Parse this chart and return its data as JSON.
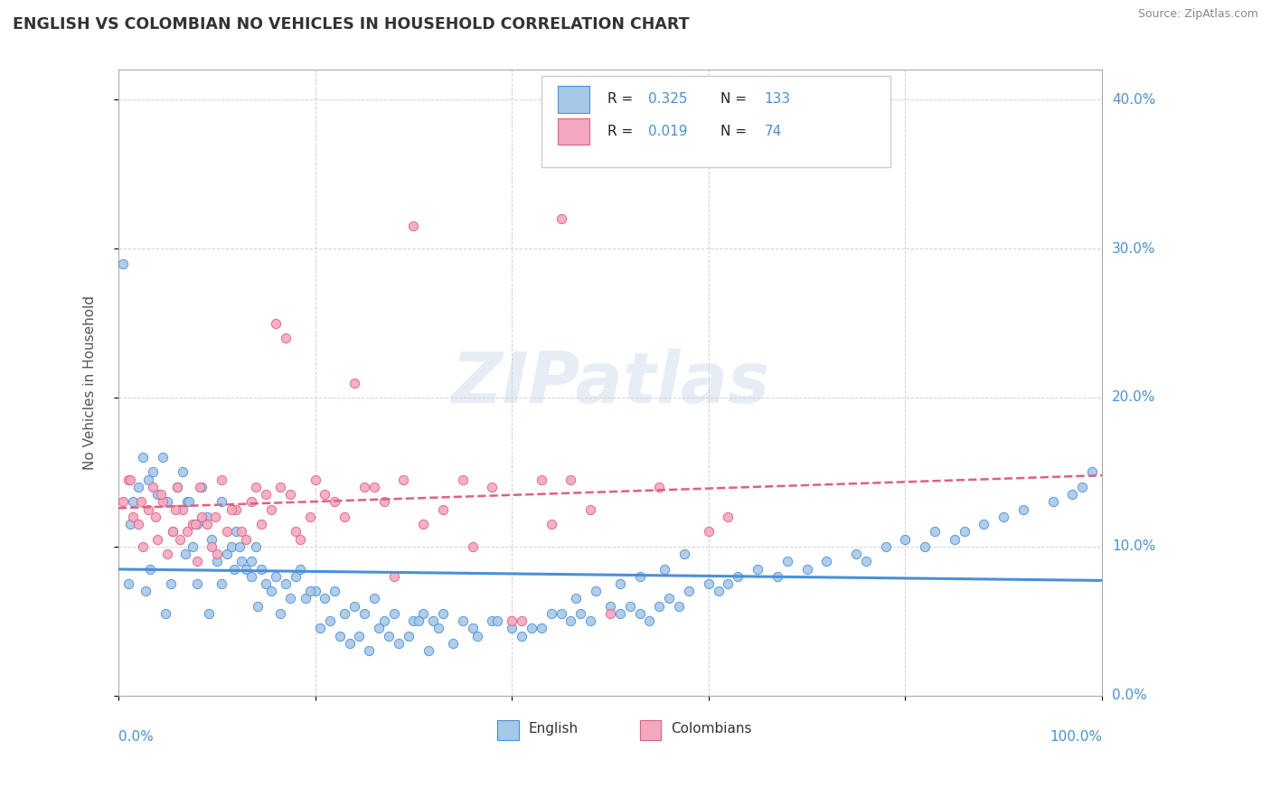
{
  "title": "ENGLISH VS COLOMBIAN NO VEHICLES IN HOUSEHOLD CORRELATION CHART",
  "source": "Source: ZipAtlas.com",
  "watermark": "ZIPatlas",
  "ylabel": "No Vehicles in Household",
  "english_R": 0.325,
  "english_N": 133,
  "colombian_R": 0.019,
  "colombian_N": 74,
  "english_color": "#a8c8e8",
  "colombian_color": "#f4a8c0",
  "english_line_color": "#4a90d9",
  "colombian_line_color": "#e06080",
  "legend_english": "English",
  "legend_colombians": "Colombians",
  "xlim": [
    0.0,
    100.0
  ],
  "ylim": [
    0.0,
    42.0
  ],
  "english_x": [
    0.5,
    1.0,
    1.5,
    2.0,
    2.5,
    3.0,
    3.5,
    4.0,
    4.5,
    5.0,
    5.5,
    6.0,
    6.5,
    7.0,
    7.5,
    8.0,
    8.5,
    9.0,
    9.5,
    10.0,
    10.5,
    11.0,
    11.5,
    12.0,
    12.5,
    13.0,
    13.5,
    14.0,
    14.5,
    15.0,
    16.0,
    17.0,
    18.0,
    19.0,
    20.0,
    21.0,
    22.0,
    23.0,
    24.0,
    25.0,
    26.0,
    27.0,
    28.0,
    30.0,
    31.0,
    32.0,
    33.0,
    35.0,
    36.0,
    38.0,
    40.0,
    41.0,
    43.0,
    45.0,
    46.0,
    47.0,
    48.0,
    50.0,
    51.0,
    52.0,
    53.0,
    54.0,
    55.0,
    56.0,
    57.0,
    58.0,
    60.0,
    61.0,
    62.0,
    63.0,
    65.0,
    67.0,
    68.0,
    70.0,
    72.0,
    75.0,
    76.0,
    78.0,
    80.0,
    82.0,
    83.0,
    85.0,
    86.0,
    88.0,
    90.0,
    92.0,
    95.0,
    97.0,
    98.0,
    99.0,
    1.2,
    2.8,
    3.2,
    4.8,
    5.3,
    6.8,
    7.2,
    8.0,
    9.2,
    10.5,
    11.8,
    12.3,
    13.5,
    14.2,
    15.5,
    16.5,
    17.5,
    18.5,
    19.5,
    20.5,
    21.5,
    22.5,
    23.5,
    24.5,
    25.5,
    26.5,
    27.5,
    28.5,
    29.5,
    30.5,
    31.5,
    32.5,
    34.0,
    36.5,
    38.5,
    42.0,
    44.0,
    46.5,
    48.5,
    51.0,
    53.0,
    55.5,
    57.5
  ],
  "english_y": [
    29.0,
    7.5,
    13.0,
    14.0,
    16.0,
    14.5,
    15.0,
    13.5,
    16.0,
    13.0,
    11.0,
    14.0,
    15.0,
    13.0,
    10.0,
    11.5,
    14.0,
    12.0,
    10.5,
    9.0,
    13.0,
    9.5,
    10.0,
    11.0,
    9.0,
    8.5,
    9.0,
    10.0,
    8.5,
    7.5,
    8.0,
    7.5,
    8.0,
    6.5,
    7.0,
    6.5,
    7.0,
    5.5,
    6.0,
    5.5,
    6.5,
    5.0,
    5.5,
    5.0,
    5.5,
    5.0,
    5.5,
    5.0,
    4.5,
    5.0,
    4.5,
    4.0,
    4.5,
    5.5,
    5.0,
    5.5,
    5.0,
    6.0,
    5.5,
    6.0,
    5.5,
    5.0,
    6.0,
    6.5,
    6.0,
    7.0,
    7.5,
    7.0,
    7.5,
    8.0,
    8.5,
    8.0,
    9.0,
    8.5,
    9.0,
    9.5,
    9.0,
    10.0,
    10.5,
    10.0,
    11.0,
    10.5,
    11.0,
    11.5,
    12.0,
    12.5,
    13.0,
    13.5,
    14.0,
    15.0,
    11.5,
    7.0,
    8.5,
    5.5,
    7.5,
    9.5,
    13.0,
    7.5,
    5.5,
    7.5,
    8.5,
    10.0,
    8.0,
    6.0,
    7.0,
    5.5,
    6.5,
    8.5,
    7.0,
    4.5,
    5.0,
    4.0,
    3.5,
    4.0,
    3.0,
    4.5,
    4.0,
    3.5,
    4.0,
    5.0,
    3.0,
    4.5,
    3.5,
    4.0,
    5.0,
    4.5,
    5.5,
    6.5,
    7.0,
    7.5,
    8.0,
    8.5,
    9.5
  ],
  "colombian_x": [
    0.5,
    1.0,
    1.5,
    2.0,
    2.5,
    3.0,
    3.5,
    4.0,
    4.5,
    5.0,
    5.5,
    6.0,
    6.5,
    7.0,
    7.5,
    8.0,
    8.5,
    9.0,
    9.5,
    10.0,
    11.0,
    12.0,
    13.0,
    14.0,
    15.0,
    16.0,
    17.0,
    18.0,
    20.0,
    22.0,
    24.0,
    26.0,
    28.0,
    30.0,
    35.0,
    40.0,
    43.0,
    45.0,
    1.2,
    2.3,
    3.8,
    4.3,
    5.8,
    6.3,
    7.8,
    8.3,
    9.8,
    10.5,
    11.5,
    12.5,
    13.5,
    14.5,
    15.5,
    16.5,
    17.5,
    18.5,
    19.5,
    21.0,
    23.0,
    25.0,
    27.0,
    29.0,
    31.0,
    33.0,
    36.0,
    38.0,
    41.0,
    44.0,
    46.0,
    48.0,
    50.0,
    55.0,
    60.0,
    62.0
  ],
  "colombian_y": [
    13.0,
    14.5,
    12.0,
    11.5,
    10.0,
    12.5,
    14.0,
    10.5,
    13.0,
    9.5,
    11.0,
    14.0,
    12.5,
    11.0,
    11.5,
    9.0,
    12.0,
    11.5,
    10.0,
    9.5,
    11.0,
    12.5,
    10.5,
    14.0,
    13.5,
    25.0,
    24.0,
    11.0,
    14.5,
    13.0,
    21.0,
    14.0,
    8.0,
    31.5,
    14.5,
    5.0,
    14.5,
    32.0,
    14.5,
    13.0,
    12.0,
    13.5,
    12.5,
    10.5,
    11.5,
    14.0,
    12.0,
    14.5,
    12.5,
    11.0,
    13.0,
    11.5,
    12.5,
    14.0,
    13.5,
    10.5,
    12.0,
    13.5,
    12.0,
    14.0,
    13.0,
    14.5,
    11.5,
    12.5,
    10.0,
    14.0,
    5.0,
    11.5,
    14.5,
    12.5,
    5.5,
    14.0,
    11.0,
    12.0
  ]
}
